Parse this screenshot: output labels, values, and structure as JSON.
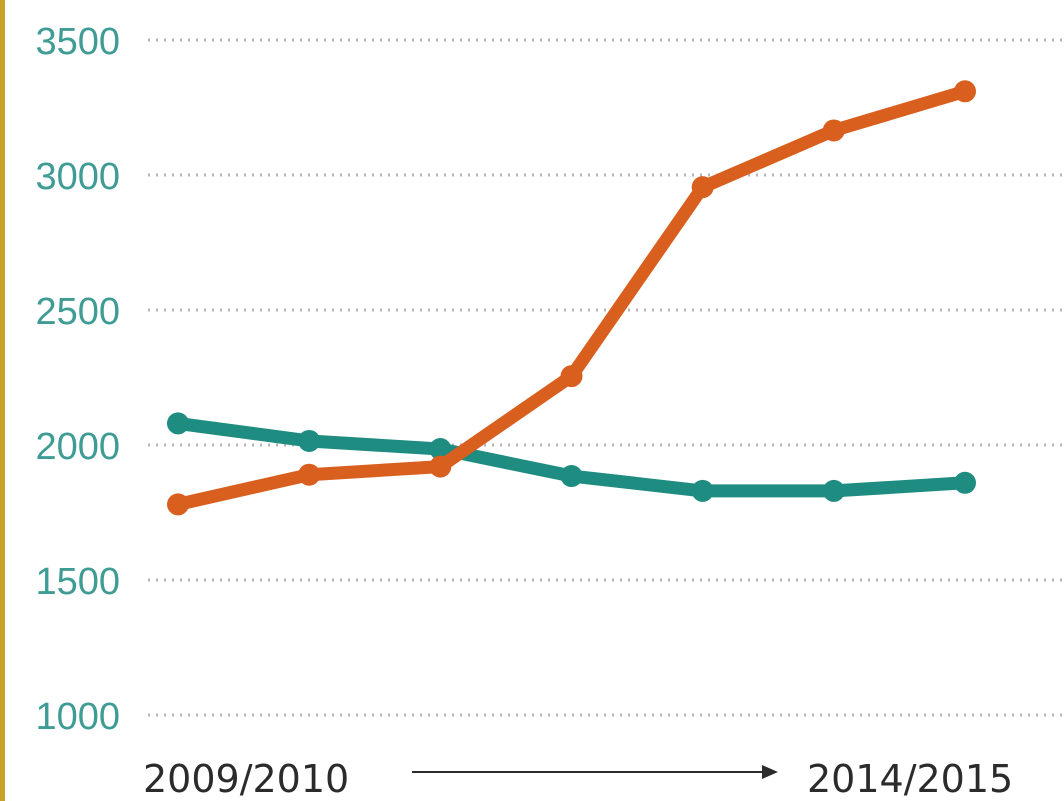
{
  "chart_data": {
    "type": "line",
    "x_start_label": "2009/2010",
    "x_end_label": "2014/2015",
    "yticks": [
      "3500",
      "3000",
      "2500",
      "2000",
      "1500",
      "1000"
    ],
    "ylim": [
      1000,
      3500
    ],
    "grid": true,
    "grid_style": "dotted",
    "series": [
      {
        "color": "#1e8c80",
        "values": [
          2080,
          2015,
          1985,
          1885,
          1830,
          1830,
          1860
        ]
      },
      {
        "color": "#d95f1e",
        "values": [
          1780,
          1890,
          1920,
          2255,
          2955,
          3165,
          3310
        ]
      }
    ]
  },
  "colors": {
    "tick_label": "#3f9c94",
    "grid": "#b5b5b5",
    "axis_text": "#2b2b2b",
    "border": "#c9a227"
  }
}
